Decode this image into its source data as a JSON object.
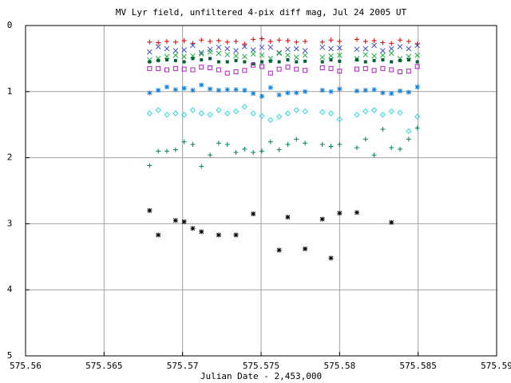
{
  "chart_data": {
    "type": "scatter",
    "title": "MV Lyr field, unfiltered 4-pix diff mag, Jul 24 2005 UT",
    "x_label": "Julian Date - 2,453,000",
    "xlim": [
      575.56,
      575.59
    ],
    "xticks": [
      575.56,
      575.565,
      575.57,
      575.575,
      575.58,
      575.585,
      575.59
    ],
    "ylim": [
      5,
      0
    ],
    "yticks": [
      0,
      1,
      2,
      3,
      4,
      5
    ],
    "grid": true,
    "x": [
      575.5679,
      575.56845,
      575.569,
      575.56955,
      575.5701,
      575.57065,
      575.5712,
      575.57175,
      575.5723,
      575.57285,
      575.5734,
      575.57395,
      575.5745,
      575.57505,
      575.5756,
      575.57615,
      575.5767,
      575.57725,
      575.5778,
      575.57835,
      575.5789,
      575.57945,
      575.58,
      575.58055,
      575.5811,
      575.58165,
      575.5822,
      575.58275,
      575.5833,
      575.58385,
      575.5844,
      575.58495
    ],
    "series": [
      {
        "color": "#e00000",
        "marker": "plus",
        "values": [
          0.25,
          0.26,
          0.24,
          0.25,
          0.23,
          0.27,
          0.22,
          0.24,
          0.23,
          0.25,
          0.24,
          0.28,
          0.21,
          0.2,
          0.24,
          0.22,
          0.23,
          0.25,
          0.24,
          null,
          0.25,
          0.22,
          0.24,
          null,
          0.21,
          0.24,
          0.23,
          0.26,
          0.27,
          0.22,
          0.24,
          0.28
        ]
      },
      {
        "color": "#4050c8",
        "marker": "cross",
        "values": [
          0.4,
          0.32,
          0.35,
          0.38,
          0.37,
          0.3,
          0.41,
          0.36,
          0.33,
          0.35,
          0.38,
          0.32,
          0.37,
          0.33,
          0.33,
          0.41,
          0.36,
          0.35,
          0.38,
          null,
          0.33,
          0.35,
          0.34,
          null,
          0.36,
          0.35,
          0.3,
          0.38,
          0.35,
          0.32,
          0.35,
          0.3
        ]
      },
      {
        "color": "#20b040",
        "marker": "cross",
        "values": [
          0.52,
          0.5,
          0.47,
          0.45,
          0.47,
          0.46,
          0.43,
          0.4,
          0.42,
          0.44,
          0.46,
          0.47,
          0.43,
          0.45,
          0.5,
          0.42,
          0.45,
          0.48,
          0.45,
          null,
          0.48,
          0.46,
          0.45,
          null,
          0.5,
          0.44,
          0.46,
          0.45,
          0.42,
          0.5,
          0.47,
          0.45
        ]
      },
      {
        "color": "#006030",
        "marker": "dot",
        "values": [
          0.55,
          0.53,
          0.52,
          0.53,
          0.55,
          0.5,
          0.52,
          0.5,
          0.55,
          0.55,
          0.53,
          0.55,
          0.58,
          0.55,
          0.54,
          0.55,
          0.52,
          0.55,
          0.54,
          null,
          0.55,
          0.52,
          0.54,
          null,
          0.52,
          0.55,
          0.53,
          0.52,
          0.55,
          0.53,
          0.52,
          0.55
        ]
      },
      {
        "color": "#b020c0",
        "marker": "square",
        "values": [
          0.65,
          0.65,
          0.67,
          0.65,
          0.66,
          0.67,
          0.63,
          0.64,
          0.67,
          0.72,
          0.7,
          0.68,
          0.6,
          0.62,
          0.72,
          0.66,
          0.63,
          0.66,
          0.68,
          null,
          0.64,
          0.65,
          0.69,
          null,
          0.66,
          0.65,
          0.68,
          0.65,
          0.67,
          0.7,
          0.69,
          0.62
        ]
      },
      {
        "color": "#1080e0",
        "marker": "star",
        "values": [
          1.02,
          0.98,
          0.93,
          0.97,
          0.95,
          0.98,
          0.9,
          0.96,
          0.98,
          0.97,
          0.97,
          0.98,
          1.03,
          1.07,
          0.94,
          1.05,
          1.02,
          1.02,
          1.0,
          null,
          0.98,
          1.0,
          0.96,
          null,
          0.99,
          0.98,
          0.97,
          1.02,
          1.03,
          0.99,
          1.01,
          0.93
        ]
      },
      {
        "color": "#30d8e0",
        "marker": "diamond",
        "values": [
          1.33,
          1.28,
          1.35,
          1.33,
          1.35,
          1.28,
          1.33,
          1.35,
          1.28,
          1.33,
          1.3,
          1.23,
          1.33,
          1.37,
          1.43,
          1.38,
          1.33,
          1.28,
          1.3,
          null,
          1.31,
          1.33,
          1.42,
          null,
          1.35,
          1.3,
          1.28,
          1.35,
          1.3,
          1.32,
          1.6,
          1.38
        ]
      },
      {
        "color": "#008060",
        "marker": "plus",
        "values": [
          2.12,
          1.9,
          1.9,
          1.88,
          1.76,
          1.8,
          2.13,
          1.96,
          1.78,
          1.8,
          1.92,
          1.87,
          1.92,
          1.9,
          1.76,
          1.88,
          1.8,
          1.72,
          1.78,
          null,
          1.8,
          1.83,
          1.8,
          null,
          1.85,
          1.72,
          1.96,
          1.57,
          1.85,
          1.87,
          1.72,
          1.55
        ]
      },
      {
        "color": "#000000",
        "marker": "star",
        "values": [
          2.8,
          3.17,
          null,
          2.95,
          2.97,
          3.07,
          3.12,
          null,
          3.17,
          null,
          3.17,
          null,
          2.85,
          null,
          null,
          3.4,
          2.9,
          null,
          3.38,
          null,
          2.93,
          3.52,
          2.84,
          null,
          2.83,
          null,
          null,
          null,
          2.98,
          null,
          null,
          null
        ]
      }
    ]
  }
}
